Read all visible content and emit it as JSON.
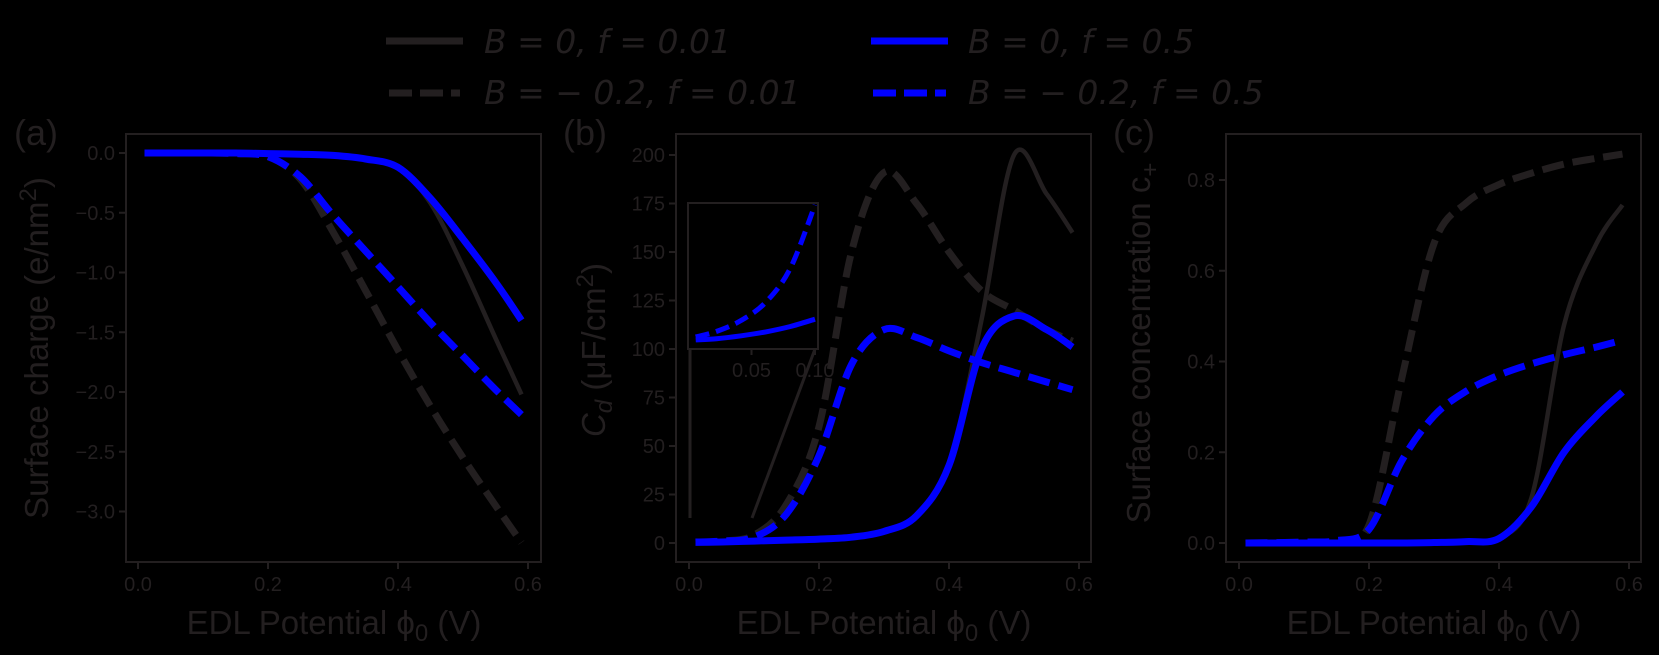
{
  "colors": {
    "black": "#231f20",
    "blue": "#0000ff",
    "background": "#000000"
  },
  "legend": {
    "items": [
      {
        "label": "B = 0, f = 0.01",
        "color": "#231f20",
        "style": "solid"
      },
      {
        "label": "B = 0, f = 0.5",
        "color": "#0000ff",
        "style": "solid"
      },
      {
        "label": "B = − 0.2, f = 0.01",
        "color": "#231f20",
        "style": "dashed"
      },
      {
        "label": "B = − 0.2, f = 0.5",
        "color": "#0000ff",
        "style": "dashed"
      }
    ]
  },
  "chart_data": [
    {
      "panel": "(a)",
      "type": "line",
      "title": "",
      "xlabel": "EDL Potential ϕ₀ (V)",
      "ylabel": "Surface charge (e/nm²)",
      "xlim": [
        -0.02,
        0.62
      ],
      "ylim": [
        -3.4,
        0.15
      ],
      "xticks": [
        "0.0",
        "0.2",
        "0.4",
        "0.6"
      ],
      "yticks": [
        "0.0",
        "-0.5",
        "-1.0",
        "-1.5",
        "-2.0",
        "-2.5",
        "-3.0"
      ],
      "x": [
        0.01,
        0.1,
        0.15,
        0.2,
        0.25,
        0.3,
        0.35,
        0.4,
        0.45,
        0.5,
        0.55,
        0.59
      ],
      "series": [
        {
          "name": "B = 0, f = 0.01",
          "color": "#231f20",
          "style": "solid",
          "values": [
            0,
            0,
            0,
            -0.005,
            -0.01,
            -0.02,
            -0.05,
            -0.12,
            -0.42,
            -0.95,
            -1.55,
            -2.02
          ]
        },
        {
          "name": "B = 0, f = 0.5",
          "color": "#0000ff",
          "style": "solid",
          "values": [
            0,
            0,
            0,
            -0.005,
            -0.01,
            -0.02,
            -0.05,
            -0.12,
            -0.38,
            -0.72,
            -1.08,
            -1.4
          ]
        },
        {
          "name": "B = -0.2, f = 0.01",
          "color": "#231f20",
          "style": "dashed",
          "values": [
            0,
            0,
            -0.005,
            -0.03,
            -0.22,
            -0.66,
            -1.15,
            -1.65,
            -2.12,
            -2.55,
            -2.95,
            -3.26
          ]
        },
        {
          "name": "B = -0.2, f = 0.5",
          "color": "#0000ff",
          "style": "dashed",
          "values": [
            0,
            0,
            -0.005,
            -0.03,
            -0.2,
            -0.52,
            -0.82,
            -1.12,
            -1.42,
            -1.7,
            -1.98,
            -2.19
          ]
        }
      ]
    },
    {
      "panel": "(b)",
      "type": "line",
      "title": "",
      "xlabel": "EDL Potential ϕ₀ (V)",
      "ylabel": "C_d (μF/cm²)",
      "xlim": [
        -0.02,
        0.62
      ],
      "ylim": [
        -10,
        210
      ],
      "xticks": [
        "0.0",
        "0.2",
        "0.4",
        "0.6"
      ],
      "yticks": [
        "0",
        "25",
        "50",
        "75",
        "100",
        "125",
        "150",
        "175",
        "200"
      ],
      "x": [
        0.01,
        0.05,
        0.1,
        0.15,
        0.2,
        0.25,
        0.3,
        0.35,
        0.4,
        0.45,
        0.5,
        0.55,
        0.59
      ],
      "series": [
        {
          "name": "B = 0, f = 0.01",
          "color": "#231f20",
          "style": "solid",
          "values": [
            0.3,
            0.5,
            1,
            1.5,
            2,
            3,
            6,
            14,
            40,
            115,
            200,
            180,
            160
          ]
        },
        {
          "name": "B = 0, f = 0.5",
          "color": "#0000ff",
          "style": "solid",
          "values": [
            0.3,
            0.5,
            1,
            1.5,
            2,
            3,
            6,
            14,
            40,
            100,
            117,
            110,
            101
          ]
        },
        {
          "name": "B = -0.2, f = 0.01",
          "color": "#231f20",
          "style": "dashed",
          "values": [
            0.5,
            1,
            4,
            20,
            60,
            150,
            191,
            175,
            150,
            130,
            120,
            110,
            104
          ]
        },
        {
          "name": "B = -0.2, f = 0.5",
          "color": "#0000ff",
          "style": "dashed",
          "values": [
            0.5,
            1,
            3,
            15,
            45,
            92,
            110,
            106,
            99,
            93,
            88,
            83,
            79
          ]
        }
      ],
      "inset": {
        "xlim": [
          0,
          0.1
        ],
        "ylim": [
          0,
          6
        ],
        "xticks": [
          "0.05",
          "0.10"
        ],
        "x": [
          0.003,
          0.02,
          0.04,
          0.06,
          0.08,
          0.1
        ],
        "series": [
          {
            "name": "B = 0, f = 0.5",
            "color": "#0000ff",
            "style": "solid",
            "values": [
              0.25,
              0.3,
              0.42,
              0.58,
              0.8,
              1.1
            ]
          },
          {
            "name": "B = -0.2, f = 0.5",
            "color": "#0000ff",
            "style": "dashed",
            "values": [
              0.37,
              0.6,
              1.05,
              1.8,
              3.2,
              5.8
            ]
          }
        ]
      }
    },
    {
      "panel": "(c)",
      "type": "line",
      "title": "",
      "xlabel": "EDL Potential ϕ₀ (V)",
      "ylabel": "Surface concentration c₊",
      "xlim": [
        -0.02,
        0.62
      ],
      "ylim": [
        -0.04,
        0.9
      ],
      "xticks": [
        "0.0",
        "0.2",
        "0.4",
        "0.6"
      ],
      "yticks": [
        "0.0",
        "0.2",
        "0.4",
        "0.6",
        "0.8"
      ],
      "x": [
        0.01,
        0.1,
        0.15,
        0.2,
        0.25,
        0.3,
        0.35,
        0.4,
        0.45,
        0.5,
        0.55,
        0.59
      ],
      "series": [
        {
          "name": "B = 0, f = 0.01",
          "color": "#231f20",
          "style": "solid",
          "values": [
            0,
            0,
            0,
            0,
            0,
            0.001,
            0.003,
            0.01,
            0.1,
            0.48,
            0.66,
            0.745
          ]
        },
        {
          "name": "B = 0, f = 0.5",
          "color": "#0000ff",
          "style": "solid",
          "values": [
            0,
            0,
            0,
            0,
            0,
            0.001,
            0.003,
            0.01,
            0.08,
            0.2,
            0.28,
            0.333
          ]
        },
        {
          "name": "B = -0.2, f = 0.01",
          "color": "#231f20",
          "style": "dashed",
          "values": [
            0,
            0.002,
            0.005,
            0.04,
            0.36,
            0.66,
            0.75,
            0.79,
            0.815,
            0.835,
            0.848,
            0.857
          ]
        },
        {
          "name": "B = -0.2, f = 0.5",
          "color": "#0000ff",
          "style": "dashed",
          "values": [
            0,
            0.002,
            0.005,
            0.03,
            0.18,
            0.28,
            0.335,
            0.37,
            0.395,
            0.415,
            0.432,
            0.447
          ]
        }
      ]
    }
  ],
  "panels": {
    "a": {
      "label": "(a)",
      "xlabel": "EDL Potential ϕ",
      "xlabel_sub": "0",
      "xlabel_unit": " (V)",
      "ylabel_main": "Surface charge (e/nm",
      "ylabel_sup": "2",
      "ylabel_end": ")"
    },
    "b": {
      "label": "(b)",
      "xlabel": "EDL Potential ϕ",
      "xlabel_sub": "0",
      "xlabel_unit": " (V)",
      "ylabel_c": "C",
      "ylabel_sub": "d",
      "ylabel_main": " (μF/cm",
      "ylabel_sup": "2",
      "ylabel_end": ")"
    },
    "c": {
      "label": "(c)",
      "xlabel": "EDL Potential ϕ",
      "xlabel_sub": "0",
      "xlabel_unit": " (V)",
      "ylabel_main": "Surface concentration c",
      "ylabel_sub": "+"
    }
  }
}
